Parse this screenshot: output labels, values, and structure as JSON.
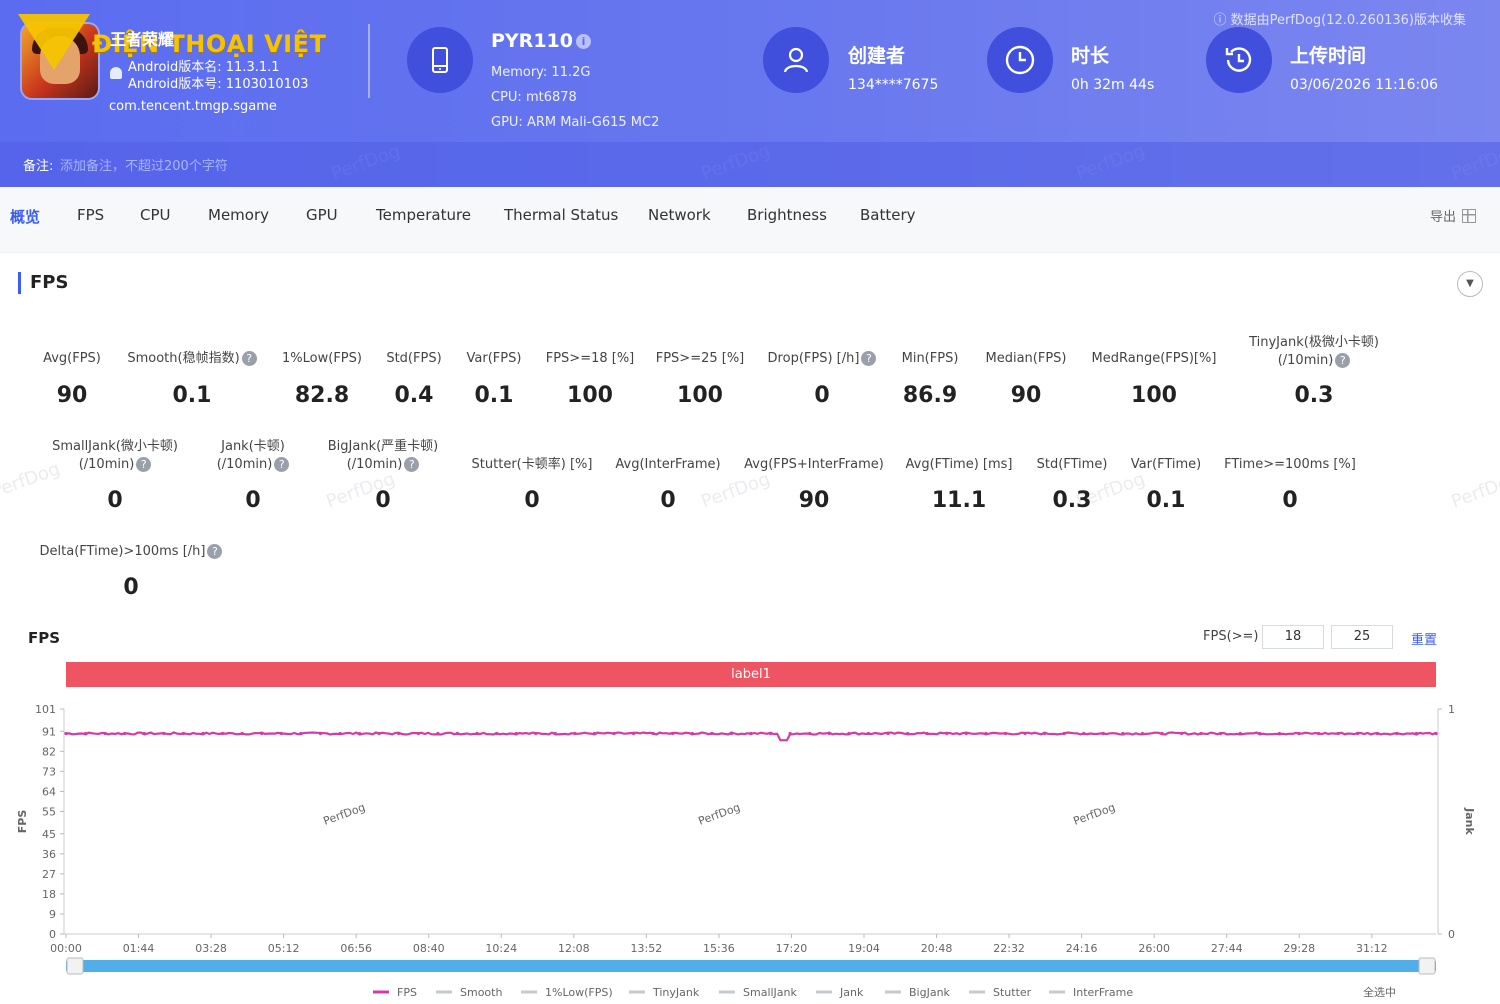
{
  "header": {
    "watermark_brand": "ĐIỆN THOẠI VIỆT",
    "app_name": "王者荣耀",
    "android_version_name": "Android版本名: 11.3.1.1",
    "android_version_code": "Android版本号: 1103010103",
    "package": "com.tencent.tmgp.sgame",
    "device": {
      "model": "PYR110",
      "memory": "Memory: 11.2G",
      "cpu": "CPU: mt6878",
      "gpu": "GPU: ARM Mali-G615 MC2"
    },
    "creator_title": "创建者",
    "creator_value": "134****7675",
    "duration_title": "时长",
    "duration_value": "0h 32m 44s",
    "upload_title": "上传时间",
    "upload_value": "03/06/2026 11:16:06",
    "collected_by": "数据由PerfDog(12.0.260136)版本收集",
    "note_label": "备注:",
    "note_placeholder": "添加备注，不超过200个字符",
    "watermark": "PerfDog"
  },
  "tabs": [
    {
      "label": "概览",
      "active": true
    },
    {
      "label": "FPS"
    },
    {
      "label": "CPU"
    },
    {
      "label": "Memory"
    },
    {
      "label": "GPU"
    },
    {
      "label": "Temperature"
    },
    {
      "label": "Thermal Status"
    },
    {
      "label": "Network"
    },
    {
      "label": "Brightness"
    },
    {
      "label": "Battery"
    }
  ],
  "export_label": "导出",
  "section_title": "FPS",
  "stats_row1": [
    {
      "label": "Avg(FPS)",
      "value": "90"
    },
    {
      "label": "Smooth(稳帧指数)",
      "value": "0.1",
      "help": true
    },
    {
      "label": "1%Low(FPS)",
      "value": "82.8"
    },
    {
      "label": "Std(FPS)",
      "value": "0.4"
    },
    {
      "label": "Var(FPS)",
      "value": "0.1"
    },
    {
      "label": "FPS>=18 [%]",
      "value": "100"
    },
    {
      "label": "FPS>=25 [%]",
      "value": "100"
    },
    {
      "label": "Drop(FPS) [/h]",
      "value": "0",
      "help": true
    },
    {
      "label": "Min(FPS)",
      "value": "86.9"
    },
    {
      "label": "Median(FPS)",
      "value": "90"
    },
    {
      "label": "MedRange(FPS)[%]",
      "value": "100"
    },
    {
      "label": "TinyJank(极微小卡顿)",
      "label2": "(/10min)",
      "value": "0.3",
      "help": true
    }
  ],
  "stats_row2": [
    {
      "label": "SmallJank(微小卡顿)",
      "label2": "(/10min)",
      "value": "0",
      "help": true
    },
    {
      "label": "Jank(卡顿)",
      "label2": "(/10min)",
      "value": "0",
      "help": true
    },
    {
      "label": "BigJank(严重卡顿)",
      "label2": "(/10min)",
      "value": "0",
      "help": true
    },
    {
      "label": "Stutter(卡顿率) [%]",
      "value": "0"
    },
    {
      "label": "Avg(InterFrame)",
      "value": "0"
    },
    {
      "label": "Avg(FPS+InterFrame)",
      "value": "90"
    },
    {
      "label": "Avg(FTime) [ms]",
      "value": "11.1"
    },
    {
      "label": "Std(FTime)",
      "value": "0.3"
    },
    {
      "label": "Var(FTime)",
      "value": "0.1"
    },
    {
      "label": "FTime>=100ms [%]",
      "value": "0"
    }
  ],
  "stats_row3": [
    {
      "label": "Delta(FTime)>100ms [/h]",
      "value": "0",
      "help": true
    }
  ],
  "chart_header": {
    "title": "FPS",
    "threshold_label": "FPS(>=)",
    "threshold_1": "18",
    "threshold_2": "25",
    "reset_label": "重置",
    "band_label": "label1",
    "select_all": "全选中"
  },
  "chart_data": {
    "type": "line",
    "ylabel": "FPS",
    "ylabel_right": "Jank",
    "y_ticks": [
      "0",
      "9",
      "18",
      "27",
      "36",
      "45",
      "55",
      "64",
      "73",
      "82",
      "91",
      "101"
    ],
    "ylim": [
      0,
      101
    ],
    "y_right_ticks": [
      "0",
      "1"
    ],
    "x_ticks": [
      "00:00",
      "01:44",
      "03:28",
      "05:12",
      "06:56",
      "08:40",
      "10:24",
      "12:08",
      "13:52",
      "15:36",
      "17:20",
      "19:04",
      "20:48",
      "22:32",
      "24:16",
      "26:00",
      "27:44",
      "29:28",
      "31:12"
    ],
    "xlim_seconds": [
      0,
      1964
    ],
    "series": [
      {
        "name": "FPS",
        "color": "#d63aa8",
        "level": 90,
        "dip_at_seconds": 1030,
        "dip_value": 87
      }
    ],
    "legend": [
      {
        "name": "FPS",
        "active": true,
        "color": "#d63aa8"
      },
      {
        "name": "Smooth",
        "active": false
      },
      {
        "name": "1%Low(FPS)",
        "active": false
      },
      {
        "name": "TinyJank",
        "active": false
      },
      {
        "name": "SmallJank",
        "active": false
      },
      {
        "name": "Jank",
        "active": false
      },
      {
        "name": "BigJank",
        "active": false
      },
      {
        "name": "Stutter",
        "active": false
      },
      {
        "name": "InterFrame",
        "active": false
      }
    ],
    "legend_position": "bottom",
    "grid": false
  },
  "colors": {
    "accent": "#3b5cf5",
    "header": "#5b6cf0",
    "band": "#ef5463",
    "scrollbar": "#52aee8"
  }
}
